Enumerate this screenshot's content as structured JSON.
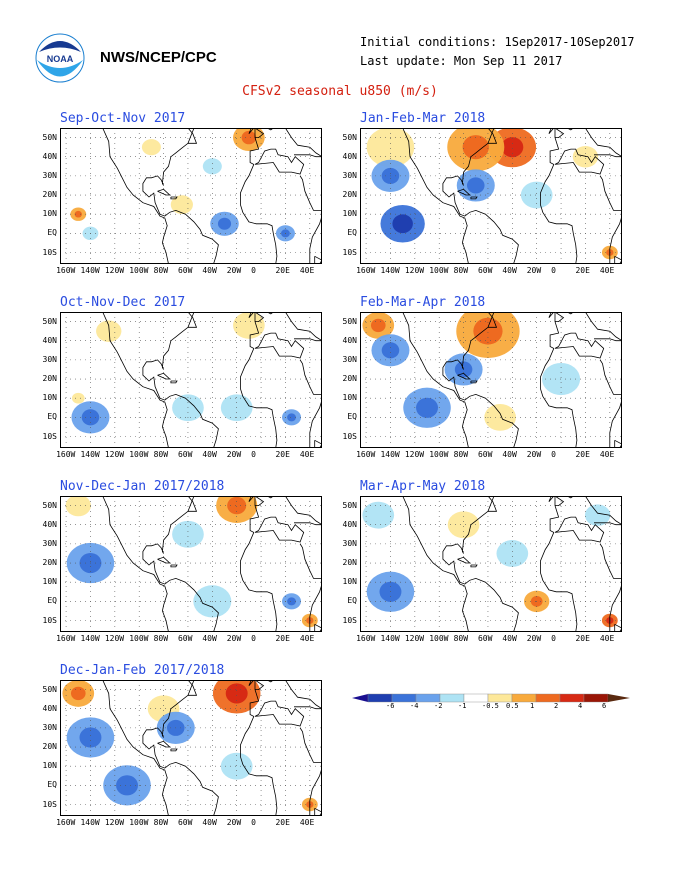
{
  "header": {
    "org": "NWS/NCEP/CPC",
    "initial": "Initial conditions: 1Sep2017-10Sep2017",
    "updated": "Last update: Mon Sep 11 2017",
    "title": "CFSv2 seasonal u850 (m/s)",
    "logo_text": "NOAA"
  },
  "colors": {
    "dblue2": "#1f3fb0",
    "dblue": "#3b73d9",
    "mblue": "#6aa2ec",
    "lblue": "#aee3f4",
    "white": "#ffffff",
    "lyellow": "#fde89a",
    "orange": "#f8aa3c",
    "dorange": "#ee6a20",
    "red": "#d72a14",
    "dred": "#9a1606"
  },
  "chart_data": {
    "type": "heatmap",
    "variable": "u850 (m/s)",
    "lat_labels": [
      "50N",
      "40N",
      "30N",
      "20N",
      "10N",
      "EQ",
      "10S"
    ],
    "lon_labels": [
      "160W",
      "140W",
      "120W",
      "100W",
      "80W",
      "60W",
      "40W",
      "20W",
      "0",
      "20E",
      "40E"
    ],
    "colorbar": {
      "labels": [
        "-6",
        "-4",
        "-2",
        "-1",
        "-0.5",
        "0.5",
        "1",
        "2",
        "4",
        "6"
      ],
      "colors": [
        "#1f3fb0",
        "#3b73d9",
        "#6aa2ec",
        "#aee3f4",
        "#ffffff",
        "#fde89a",
        "#f8aa3c",
        "#ee6a20",
        "#d72a14",
        "#9a1606"
      ]
    },
    "panels": [
      {
        "title": "Sep-Oct-Nov 2017",
        "blobs": [
          {
            "lon": -90,
            "lat": 45,
            "r": 6,
            "level": 1
          },
          {
            "lon": -10,
            "lat": 50,
            "r": 10,
            "level": 2
          },
          {
            "lon": -150,
            "lat": 10,
            "r": 5,
            "level": 2
          },
          {
            "lon": -65,
            "lat": 15,
            "r": 7,
            "level": 1
          },
          {
            "lon": -30,
            "lat": 5,
            "r": 9,
            "level": -2
          },
          {
            "lon": -40,
            "lat": 35,
            "r": 6,
            "level": -1
          },
          {
            "lon": -140,
            "lat": 0,
            "r": 5,
            "level": -1
          },
          {
            "lon": 20,
            "lat": 0,
            "r": 6,
            "level": -2
          }
        ]
      },
      {
        "title": "Jan-Feb-Mar 2018",
        "blobs": [
          {
            "lon": -40,
            "lat": 45,
            "r": 15,
            "level": 4
          },
          {
            "lon": -70,
            "lat": 45,
            "r": 18,
            "level": 2
          },
          {
            "lon": -140,
            "lat": 45,
            "r": 15,
            "level": 1
          },
          {
            "lon": -140,
            "lat": 30,
            "r": 12,
            "level": -2
          },
          {
            "lon": -70,
            "lat": 25,
            "r": 12,
            "level": -2
          },
          {
            "lon": -130,
            "lat": 5,
            "r": 14,
            "level": -4
          },
          {
            "lon": -20,
            "lat": 20,
            "r": 10,
            "level": -1
          },
          {
            "lon": 20,
            "lat": 40,
            "r": 8,
            "level": 1
          },
          {
            "lon": 40,
            "lat": -10,
            "r": 5,
            "level": 2
          }
        ]
      },
      {
        "title": "Oct-Nov-Dec 2017",
        "blobs": [
          {
            "lon": -125,
            "lat": 45,
            "r": 8,
            "level": 1
          },
          {
            "lon": -10,
            "lat": 48,
            "r": 10,
            "level": 1
          },
          {
            "lon": -140,
            "lat": 0,
            "r": 12,
            "level": -2
          },
          {
            "lon": -60,
            "lat": 5,
            "r": 10,
            "level": -1
          },
          {
            "lon": -20,
            "lat": 5,
            "r": 10,
            "level": -1
          },
          {
            "lon": 25,
            "lat": 0,
            "r": 6,
            "level": -2
          },
          {
            "lon": -150,
            "lat": 10,
            "r": 4,
            "level": 1
          }
        ]
      },
      {
        "title": "Feb-Mar-Apr 2018",
        "blobs": [
          {
            "lon": -60,
            "lat": 45,
            "r": 20,
            "level": 2
          },
          {
            "lon": -150,
            "lat": 48,
            "r": 10,
            "level": 2
          },
          {
            "lon": -140,
            "lat": 35,
            "r": 12,
            "level": -2
          },
          {
            "lon": -80,
            "lat": 25,
            "r": 12,
            "level": -2
          },
          {
            "lon": -110,
            "lat": 5,
            "r": 15,
            "level": -2
          },
          {
            "lon": -50,
            "lat": 0,
            "r": 10,
            "level": 1
          },
          {
            "lon": 0,
            "lat": 20,
            "r": 12,
            "level": -1
          }
        ]
      },
      {
        "title": "Nov-Dec-Jan 2017/2018",
        "blobs": [
          {
            "lon": -20,
            "lat": 50,
            "r": 13,
            "level": 2
          },
          {
            "lon": -150,
            "lat": 50,
            "r": 8,
            "level": 1
          },
          {
            "lon": -140,
            "lat": 20,
            "r": 15,
            "level": -2
          },
          {
            "lon": -60,
            "lat": 35,
            "r": 10,
            "level": -1
          },
          {
            "lon": -40,
            "lat": 0,
            "r": 12,
            "level": -1
          },
          {
            "lon": 25,
            "lat": 0,
            "r": 6,
            "level": -2
          },
          {
            "lon": 40,
            "lat": -10,
            "r": 5,
            "level": 2
          }
        ]
      },
      {
        "title": "Mar-Apr-May 2018",
        "blobs": [
          {
            "lon": -80,
            "lat": 40,
            "r": 10,
            "level": 1
          },
          {
            "lon": -150,
            "lat": 45,
            "r": 10,
            "level": -1
          },
          {
            "lon": -140,
            "lat": 5,
            "r": 15,
            "level": -2
          },
          {
            "lon": -20,
            "lat": 0,
            "r": 8,
            "level": 2
          },
          {
            "lon": -40,
            "lat": 25,
            "r": 10,
            "level": -1
          },
          {
            "lon": 30,
            "lat": 45,
            "r": 8,
            "level": -1
          },
          {
            "lon": 40,
            "lat": -10,
            "r": 5,
            "level": 4
          }
        ]
      },
      {
        "title": "Dec-Jan-Feb 2017/2018",
        "blobs": [
          {
            "lon": -20,
            "lat": 48,
            "r": 15,
            "level": 4
          },
          {
            "lon": -150,
            "lat": 48,
            "r": 10,
            "level": 2
          },
          {
            "lon": -80,
            "lat": 40,
            "r": 10,
            "level": 1
          },
          {
            "lon": -140,
            "lat": 25,
            "r": 15,
            "level": -2
          },
          {
            "lon": -70,
            "lat": 30,
            "r": 12,
            "level": -2
          },
          {
            "lon": -110,
            "lat": 0,
            "r": 15,
            "level": -2
          },
          {
            "lon": -20,
            "lat": 10,
            "r": 10,
            "level": -1
          },
          {
            "lon": 40,
            "lat": -10,
            "r": 5,
            "level": 2
          }
        ]
      }
    ]
  }
}
